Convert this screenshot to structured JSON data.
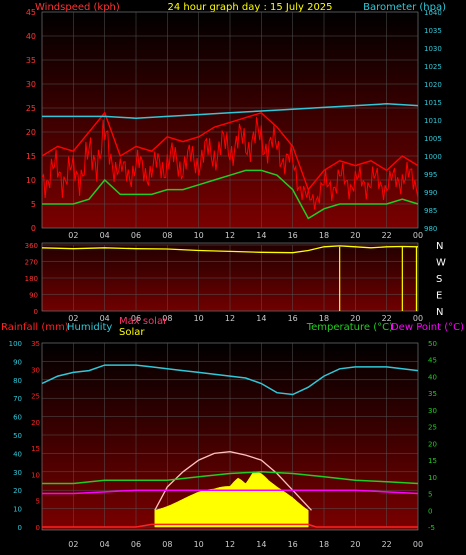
{
  "header": {
    "title": "24 hour graph day : 15 July 2025",
    "left_label": "Windspeed (kph)",
    "right_label": "Barometer (hpa)"
  },
  "colors": {
    "windspeed": "#ff0000",
    "gust": "#ff0000",
    "wind_avg": "#22cc22",
    "barometer": "#30c8d8",
    "direction": "#ffff00",
    "rainfall": "#ff2222",
    "humidity": "#30c8d8",
    "temperature": "#22cc22",
    "dewpoint": "#ff00ff",
    "solar": "#ffff00",
    "maxsolar": "#ffc0c0",
    "axis_left": "#ff3333",
    "axis_right": "#30c8d8",
    "grid": "#555555",
    "panel_top": "#000000",
    "panel_bottom": "#7a0000"
  },
  "chart_data": [
    {
      "type": "line",
      "name": "wind-barometer",
      "x_ticks": [
        "02",
        "04",
        "06",
        "08",
        "10",
        "12",
        "14",
        "16",
        "18",
        "20",
        "22",
        "00"
      ],
      "left_axis": {
        "label": "Windspeed (kph)",
        "range": [
          0,
          45
        ],
        "ticks": [
          "0",
          "5",
          "10",
          "15",
          "20",
          "25",
          "30",
          "35",
          "40",
          "45"
        ]
      },
      "right_axis": {
        "label": "Barometer (hpa)",
        "range": [
          980,
          1040
        ],
        "ticks": [
          "980",
          "985",
          "990",
          "995",
          "1000",
          "1005",
          "1010",
          "1015",
          "1020",
          "1025",
          "1030",
          "1035",
          "1040"
        ]
      },
      "series": [
        {
          "key": "gust",
          "hours": [
            0,
            1,
            2,
            3,
            4,
            5,
            6,
            7,
            8,
            9,
            10,
            11,
            12,
            13,
            14,
            15,
            16,
            17,
            18,
            19,
            20,
            21,
            22,
            23,
            24
          ],
          "values": [
            15,
            17,
            16,
            20,
            24,
            15,
            17,
            16,
            19,
            18,
            19,
            21,
            22,
            23,
            24,
            21,
            17,
            8,
            12,
            14,
            13,
            14,
            12,
            15,
            13
          ]
        },
        {
          "key": "wind_avg",
          "hours": [
            0,
            1,
            2,
            3,
            4,
            5,
            6,
            7,
            8,
            9,
            10,
            11,
            12,
            13,
            14,
            15,
            16,
            17,
            18,
            19,
            20,
            21,
            22,
            23,
            24
          ],
          "values": [
            5,
            5,
            5,
            6,
            10,
            7,
            7,
            7,
            8,
            8,
            9,
            10,
            11,
            12,
            12,
            11,
            8,
            2,
            4,
            5,
            5,
            5,
            5,
            6,
            5
          ]
        },
        {
          "key": "barometer",
          "hours": [
            0,
            2,
            4,
            6,
            8,
            10,
            12,
            14,
            16,
            18,
            20,
            22,
            24
          ],
          "values": [
            1011,
            1011,
            1011,
            1010.5,
            1011,
            1011.5,
            1012,
            1012.5,
            1013,
            1013.5,
            1014,
            1014.5,
            1014
          ]
        }
      ]
    },
    {
      "type": "line",
      "name": "wind-direction",
      "x_ticks": [
        "02",
        "04",
        "06",
        "08",
        "10",
        "12",
        "14",
        "16",
        "18",
        "20",
        "22",
        "00"
      ],
      "left_axis": {
        "range": [
          0,
          360
        ],
        "ticks": [
          "0",
          "90",
          "180",
          "270",
          "360"
        ]
      },
      "right_axis": {
        "ticks": [
          "N",
          "E",
          "S",
          "W",
          "N"
        ]
      },
      "series": [
        {
          "key": "direction",
          "hours": [
            0,
            2,
            4,
            6,
            8,
            10,
            12,
            14,
            16,
            17,
            18,
            19,
            20,
            21,
            22,
            23,
            24
          ],
          "values": [
            345,
            340,
            345,
            340,
            338,
            330,
            325,
            320,
            318,
            330,
            350,
            355,
            350,
            345,
            350,
            352,
            350
          ]
        }
      ],
      "spikes": [
        {
          "hour": 19.0,
          "value": 0
        },
        {
          "hour": 23.0,
          "value": 0
        },
        {
          "hour": 23.9,
          "value": 0
        }
      ]
    },
    {
      "type": "line",
      "name": "rain-humidity-temperature",
      "legend": [
        "Rainfall (mm)",
        "Humidity",
        "Max solar",
        "Solar",
        "Temperature (°C)",
        "Dew Point (°C)"
      ],
      "x_ticks": [
        "02",
        "04",
        "06",
        "08",
        "10",
        "12",
        "14",
        "16",
        "18",
        "20",
        "22",
        "00"
      ],
      "rain_axis": {
        "range": [
          0,
          35
        ],
        "ticks": [
          "0",
          "5",
          "10",
          "15",
          "20",
          "25",
          "30",
          "35"
        ]
      },
      "humidity_axis": {
        "range": [
          0,
          100
        ],
        "ticks": [
          "0",
          "10",
          "20",
          "30",
          "40",
          "50",
          "60",
          "70",
          "80",
          "90",
          "100"
        ]
      },
      "temp_axis": {
        "range": [
          -5,
          50
        ],
        "ticks": [
          "-5",
          "0",
          "5",
          "10",
          "15",
          "20",
          "25",
          "30",
          "35",
          "40",
          "45",
          "50"
        ]
      },
      "series": [
        {
          "key": "humidity",
          "hours": [
            0,
            1,
            2,
            3,
            4,
            5,
            6,
            7,
            8,
            9,
            10,
            11,
            12,
            13,
            14,
            15,
            16,
            17,
            18,
            19,
            20,
            21,
            22,
            23,
            24
          ],
          "values": [
            78,
            82,
            84,
            85,
            88,
            88,
            88,
            87,
            86,
            85,
            84,
            83,
            82,
            81,
            78,
            73,
            72,
            76,
            82,
            86,
            87,
            87,
            87,
            86,
            85
          ]
        },
        {
          "key": "temperature",
          "hours": [
            0,
            2,
            4,
            6,
            8,
            10,
            12,
            14,
            16,
            18,
            20,
            22,
            24
          ],
          "values": [
            8,
            8,
            9,
            9,
            9,
            10,
            11,
            11.5,
            11,
            10,
            9,
            8.5,
            8
          ]
        },
        {
          "key": "dewpoint",
          "hours": [
            0,
            2,
            4,
            6,
            8,
            10,
            12,
            14,
            16,
            18,
            20,
            22,
            24
          ],
          "values": [
            5,
            5,
            5.5,
            6,
            6,
            6,
            6,
            6,
            6,
            6,
            6,
            5.5,
            5
          ]
        },
        {
          "key": "rainfall",
          "hours": [
            0,
            6,
            7,
            17,
            17.5,
            24
          ],
          "values": [
            0,
            0,
            0.5,
            0.5,
            0,
            0
          ]
        },
        {
          "key": "maxsolar",
          "hours": [
            7.2,
            8,
            9,
            10,
            11,
            12,
            13,
            14,
            15,
            16,
            17.2
          ],
          "values": [
            0,
            7,
            11.5,
            15,
            17,
            17.5,
            16.5,
            15,
            11,
            6,
            0
          ]
        },
        {
          "key": "solar",
          "hours": [
            7.2,
            8,
            9,
            10,
            11,
            12,
            12.5,
            13,
            13.5,
            14,
            14.5,
            15,
            16,
            17
          ],
          "values": [
            0,
            1.5,
            3.5,
            5.5,
            7,
            10,
            16,
            11,
            14,
            12,
            9,
            7,
            4,
            0
          ]
        }
      ]
    }
  ]
}
